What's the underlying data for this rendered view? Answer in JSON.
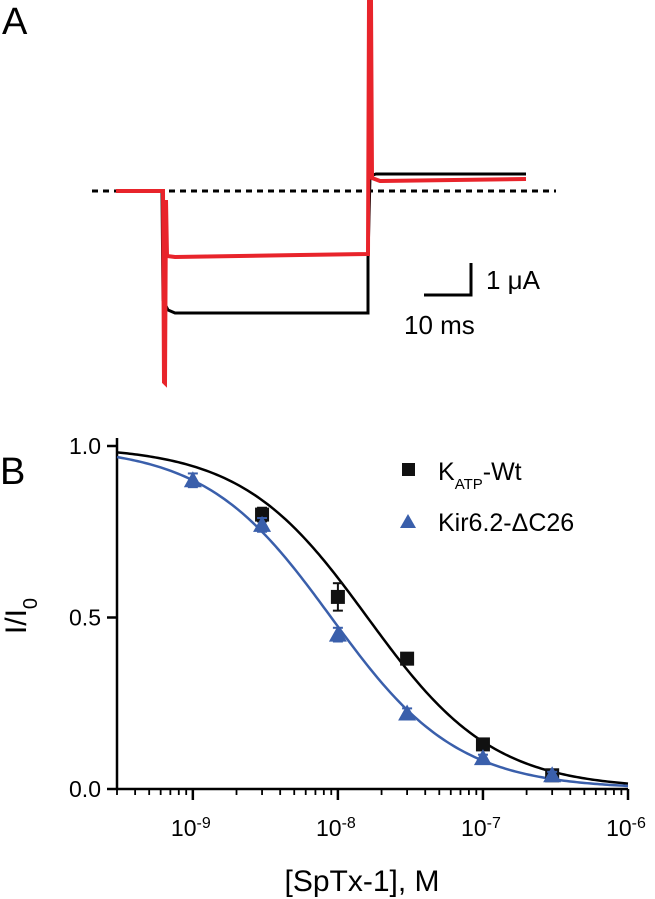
{
  "colors": {
    "trace_control": "#000000",
    "trace_toxin": "#e8242b",
    "wt": "#111111",
    "dc26": "#3a5fab",
    "fit_wt": "#000000",
    "fit_dc26": "#3a5fab"
  },
  "panel_a": {
    "label": "A",
    "scale_current": "1 μA",
    "scale_time": "10 ms"
  },
  "chart_data": {
    "type": "scatter",
    "panel_label": "B",
    "xlabel": "[SpTx-1], M",
    "ylabel": "I/I",
    "ylabel_sub": "0",
    "xscale": "log",
    "xlim": [
      3e-10,
      1e-06
    ],
    "ylim": [
      0,
      1.0
    ],
    "xticks": [
      {
        "value": 1e-09,
        "base": "10",
        "exp": "-9"
      },
      {
        "value": 1e-08,
        "base": "10",
        "exp": "-8"
      },
      {
        "value": 1e-07,
        "base": "10",
        "exp": "-7"
      },
      {
        "value": 1e-06,
        "base": "10",
        "exp": "-6"
      }
    ],
    "yticks": [
      {
        "value": 0.0,
        "label": "0.0"
      },
      {
        "value": 0.5,
        "label": "0.5"
      },
      {
        "value": 1.0,
        "label": "1.0"
      }
    ],
    "legend_position": "top-right",
    "series": [
      {
        "name": "K",
        "name_sub": "ATP",
        "name_suffix": "-Wt",
        "marker": "square",
        "x": [
          3e-09,
          1e-08,
          3e-08,
          1e-07,
          3e-07
        ],
        "y": [
          0.8,
          0.56,
          0.38,
          0.13,
          0.04
        ],
        "err": [
          0.02,
          0.04,
          0.015,
          0.015,
          0.01
        ],
        "fit": {
          "ic50": 1.6e-08,
          "hill": 1.0
        }
      },
      {
        "name": "Kir6.2-ΔC26",
        "marker": "triangle",
        "x": [
          1e-09,
          3e-09,
          1e-08,
          3e-08,
          1e-07,
          3e-07
        ],
        "y": [
          0.9,
          0.77,
          0.45,
          0.22,
          0.09,
          0.04
        ],
        "err": [
          0.02,
          0.02,
          0.02,
          0.015,
          0.01,
          0.01
        ],
        "fit": {
          "ic50": 9e-09,
          "hill": 1.0
        }
      }
    ]
  }
}
